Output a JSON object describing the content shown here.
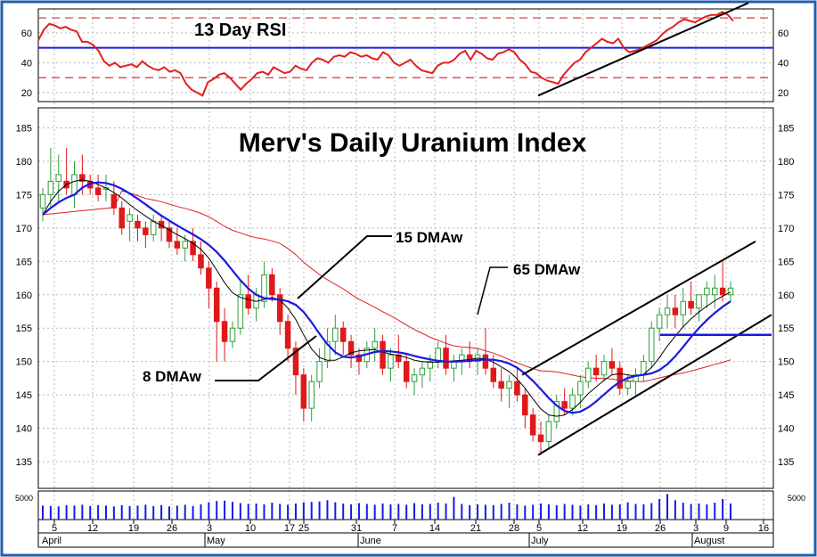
{
  "chart_data": {
    "type": "candlestick",
    "title": "Merv's Daily Uranium Index",
    "colors": {
      "frame": "#1f5fb0",
      "rsi_line": "#e02020",
      "rsi_ref_lines": "#d23030",
      "ma8": "#000000",
      "ma15": "#1a1ae0",
      "ma65": "#e02020",
      "candle_up": "#2f9e3a",
      "candle_down": "#e01818",
      "volume": "#1a1ae0",
      "channel": "#000000",
      "support": "#1a1ae0"
    },
    "rsi_panel": {
      "label": "13 Day RSI",
      "yticks": [
        "60",
        "40",
        "20"
      ],
      "ylim": [
        14,
        76
      ],
      "reference_levels": [
        70,
        30
      ],
      "solid_level": 50,
      "values": [
        55,
        62,
        66,
        65,
        63,
        64,
        62,
        61,
        54,
        54,
        52,
        48,
        41,
        38,
        40,
        37,
        38,
        39,
        37,
        41,
        38,
        36,
        35,
        37,
        34,
        35,
        33,
        26,
        22,
        20,
        18,
        27,
        29,
        32,
        33,
        30,
        26,
        22,
        26,
        29,
        33,
        34,
        32,
        37,
        35,
        33,
        34,
        38,
        36,
        35,
        40,
        43,
        42,
        40,
        44,
        45,
        44,
        47,
        46,
        44,
        45,
        43,
        42,
        47,
        45,
        40,
        38,
        40,
        42,
        38,
        35,
        34,
        33,
        38,
        40,
        40,
        42,
        46,
        48,
        42,
        48,
        46,
        43,
        42,
        46,
        47,
        49,
        47,
        42,
        39,
        34,
        33,
        30,
        28,
        27,
        26,
        32,
        36,
        40,
        42,
        47,
        50,
        53,
        56,
        54,
        53,
        56,
        50,
        47,
        48,
        49,
        51,
        53,
        55,
        59,
        62,
        64,
        67,
        69,
        68,
        67,
        69,
        71,
        72,
        72,
        74,
        72,
        68
      ]
    },
    "price_panel": {
      "yticks": [
        "185",
        "180",
        "175",
        "170",
        "165",
        "160",
        "155",
        "150",
        "145",
        "140",
        "135"
      ],
      "ylim": [
        131,
        188
      ],
      "candles": [
        [
          173,
          176,
          171,
          175
        ],
        [
          175,
          182,
          173,
          177
        ],
        [
          177,
          181,
          174,
          178
        ],
        [
          177,
          182,
          175,
          176
        ],
        [
          175,
          180,
          173,
          178
        ],
        [
          178,
          181,
          175,
          177
        ],
        [
          177,
          178,
          175,
          176
        ],
        [
          176,
          178,
          174,
          175
        ],
        [
          176,
          178,
          174,
          176
        ],
        [
          175,
          177,
          172,
          173
        ],
        [
          173,
          174,
          169,
          170
        ],
        [
          171,
          173,
          168,
          172
        ],
        [
          171,
          172,
          168,
          170
        ],
        [
          170,
          171,
          167,
          169
        ],
        [
          169,
          172,
          168,
          171
        ],
        [
          171,
          172,
          168,
          170
        ],
        [
          170,
          171,
          167,
          168
        ],
        [
          168,
          170,
          166,
          167
        ],
        [
          167,
          169,
          165,
          168
        ],
        [
          168,
          170,
          165,
          166
        ],
        [
          166,
          168,
          163,
          164
        ],
        [
          164,
          165,
          158,
          161
        ],
        [
          161,
          162,
          150,
          156
        ],
        [
          156,
          158,
          150,
          153
        ],
        [
          153,
          156,
          152,
          155
        ],
        [
          155,
          162,
          154,
          160
        ],
        [
          160,
          163,
          157,
          158
        ],
        [
          158,
          161,
          156,
          160
        ],
        [
          159,
          165,
          158,
          163
        ],
        [
          163,
          164,
          159,
          160
        ],
        [
          160,
          161,
          154,
          156
        ],
        [
          156,
          157,
          150,
          152
        ],
        [
          152,
          153,
          145,
          148
        ],
        [
          148,
          149,
          141,
          143
        ],
        [
          143,
          148,
          141,
          147
        ],
        [
          147,
          152,
          146,
          150
        ],
        [
          150,
          155,
          149,
          153
        ],
        [
          153,
          157,
          151,
          155
        ],
        [
          155,
          156,
          151,
          153
        ],
        [
          153,
          154,
          149,
          151
        ],
        [
          151,
          152,
          148,
          150
        ],
        [
          150,
          153,
          149,
          152
        ],
        [
          152,
          155,
          150,
          153
        ],
        [
          153,
          154,
          148,
          149
        ],
        [
          149,
          152,
          147,
          151
        ],
        [
          151,
          154,
          149,
          150
        ],
        [
          150,
          151,
          146,
          147
        ],
        [
          147,
          149,
          145,
          148
        ],
        [
          148,
          150,
          146,
          149
        ],
        [
          149,
          151,
          147,
          150
        ],
        [
          150,
          153,
          149,
          152
        ],
        [
          152,
          154,
          148,
          149
        ],
        [
          149,
          151,
          147,
          150
        ],
        [
          150,
          152,
          148,
          151
        ],
        [
          151,
          153,
          149,
          150
        ],
        [
          150,
          152,
          148,
          151
        ],
        [
          151,
          155,
          148,
          149
        ],
        [
          149,
          151,
          146,
          147
        ],
        [
          147,
          149,
          144,
          146
        ],
        [
          146,
          148,
          143,
          147
        ],
        [
          147,
          149,
          144,
          145
        ],
        [
          145,
          146,
          140,
          142
        ],
        [
          142,
          143,
          138,
          139
        ],
        [
          139,
          141,
          136,
          138
        ],
        [
          138,
          142,
          137,
          141
        ],
        [
          141,
          145,
          140,
          144
        ],
        [
          144,
          146,
          142,
          143
        ],
        [
          143,
          146,
          142,
          145
        ],
        [
          145,
          148,
          143,
          147
        ],
        [
          147,
          150,
          146,
          149
        ],
        [
          149,
          151,
          147,
          148
        ],
        [
          148,
          151,
          147,
          150
        ],
        [
          150,
          152,
          148,
          149
        ],
        [
          149,
          150,
          145,
          146
        ],
        [
          146,
          148,
          145,
          147
        ],
        [
          147,
          149,
          145,
          148
        ],
        [
          148,
          151,
          147,
          150
        ],
        [
          150,
          156,
          149,
          155
        ],
        [
          155,
          158,
          153,
          157
        ],
        [
          157,
          160,
          155,
          158
        ],
        [
          158,
          160,
          155,
          157
        ],
        [
          157,
          161,
          155,
          159
        ],
        [
          159,
          162,
          157,
          158
        ],
        [
          158,
          160,
          156,
          160
        ],
        [
          160,
          162,
          158,
          161
        ],
        [
          160,
          163,
          158,
          161
        ],
        [
          161,
          165,
          159,
          160
        ],
        [
          160,
          162,
          159,
          161
        ]
      ],
      "ma8": [
        172,
        174,
        175.5,
        176.5,
        177,
        177.2,
        177,
        176.5,
        176,
        175.3,
        174.5,
        173.5,
        172.6,
        171.8,
        171,
        170.4,
        169.7,
        169,
        168.4,
        167.7,
        166.8,
        165.5,
        163.7,
        161.8,
        160.3,
        159.6,
        159.3,
        159,
        159.3,
        159.6,
        159.2,
        158,
        156.3,
        154,
        151.9,
        150.6,
        150.2,
        150.2,
        150.7,
        151.3,
        151.6,
        151.7,
        151.8,
        151.4,
        151.1,
        150.9,
        150.6,
        150.2,
        150,
        149.9,
        149.9,
        150,
        150.1,
        150.2,
        150.3,
        150.5,
        150.4,
        149.9,
        149.2,
        148.5,
        147.4,
        146,
        144.4,
        142.9,
        142,
        141.8,
        142,
        142.8,
        143.9,
        145.2,
        146.2,
        147.2,
        148,
        148.2,
        148,
        147.8,
        148.1,
        149.1,
        150.6,
        152.3,
        153.8,
        155.2,
        156.4,
        157.4,
        158.3,
        159.1,
        159.8,
        160.4
      ]
    },
    "annotations": {
      "ma8": "8 DMAw",
      "ma15": "15 DMAw",
      "ma65": "65 DMAw"
    },
    "volume_panel": {
      "ytick": "5000",
      "bars": [
        3400,
        3300,
        3200,
        3500,
        3400,
        3600,
        3300,
        3500,
        3400,
        3200,
        3500,
        3300,
        3400,
        3600,
        3300,
        3500,
        3200,
        3400,
        3600,
        3300,
        3700,
        4200,
        4500,
        4600,
        4300,
        4000,
        3800,
        3900,
        3700,
        4100,
        3800,
        3600,
        3900,
        4200,
        4300,
        4400,
        4700,
        4200,
        3900,
        3700,
        4000,
        3800,
        3600,
        3900,
        3700,
        3800,
        3600,
        4000,
        3700,
        3800,
        4100,
        3900,
        5500,
        3800,
        3500,
        3700,
        3600,
        3500,
        3800,
        4100,
        3700,
        3400,
        3600,
        3900,
        3700,
        3500,
        3800,
        3600,
        3400,
        3700,
        3500,
        3900,
        3600,
        3700,
        4200,
        3800,
        3700,
        4000,
        5000,
        6200,
        4700,
        4100,
        3800,
        3900,
        3700,
        4100,
        5000,
        3900
      ]
    },
    "x_axis": {
      "day_ticks": [
        "5",
        "12",
        "19",
        "26",
        "3",
        "10",
        "17",
        "25",
        "31",
        "7",
        "14",
        "21",
        "28",
        "5",
        "12",
        "19",
        "26",
        "3",
        "9",
        "16"
      ],
      "months": [
        "April",
        "May",
        "June",
        "July",
        "August"
      ]
    }
  }
}
